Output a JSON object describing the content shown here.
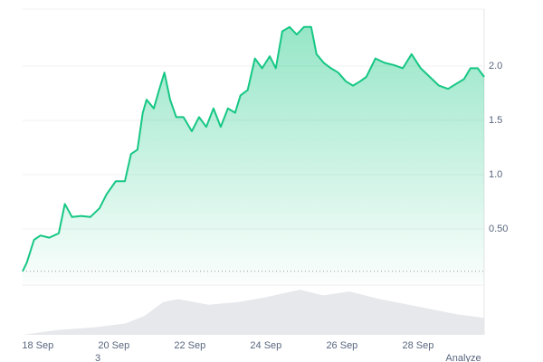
{
  "chart_data": {
    "type": "area",
    "x": [
      17.6,
      17.71,
      17.9,
      18.07,
      18.3,
      18.55,
      18.71,
      18.9,
      19.14,
      19.38,
      19.62,
      19.81,
      20.05,
      20.29,
      20.45,
      20.62,
      20.76,
      20.86,
      21.05,
      21.19,
      21.33,
      21.48,
      21.64,
      21.83,
      22.05,
      22.24,
      22.43,
      22.62,
      22.81,
      23.0,
      23.19,
      23.33,
      23.52,
      23.71,
      23.9,
      24.1,
      24.26,
      24.43,
      24.62,
      24.81,
      25.0,
      25.19,
      25.33,
      25.52,
      25.71,
      25.9,
      26.1,
      26.29,
      26.48,
      26.64,
      26.88,
      27.12,
      27.36,
      27.6,
      27.83,
      28.07,
      28.31,
      28.55,
      28.79,
      29.02,
      29.21,
      29.38,
      29.57,
      29.74
    ],
    "series": [
      {
        "color": "#16c784",
        "values": [
          0.11,
          0.19,
          0.4,
          0.44,
          0.42,
          0.46,
          0.73,
          0.61,
          0.62,
          0.61,
          0.69,
          0.82,
          0.94,
          0.94,
          1.19,
          1.23,
          1.57,
          1.69,
          1.61,
          1.78,
          1.94,
          1.69,
          1.53,
          1.53,
          1.4,
          1.53,
          1.44,
          1.61,
          1.44,
          1.61,
          1.57,
          1.73,
          1.78,
          2.07,
          1.98,
          2.09,
          1.98,
          2.32,
          2.36,
          2.29,
          2.36,
          2.36,
          2.11,
          2.03,
          1.98,
          1.94,
          1.86,
          1.82,
          1.86,
          1.9,
          2.07,
          2.03,
          2.01,
          1.98,
          2.11,
          1.98,
          1.9,
          1.82,
          1.79,
          1.84,
          1.88,
          1.98,
          1.98,
          1.9
        ]
      }
    ],
    "volume": {
      "color": "#e6e8ec",
      "x": [
        17.6,
        18.5,
        19.5,
        20.3,
        20.8,
        21.3,
        21.7,
        22.5,
        23.3,
        24.0,
        24.9,
        25.5,
        26.2,
        27.0,
        28.0,
        29.0,
        29.74
      ],
      "values": [
        0,
        5,
        8,
        12,
        20,
        35,
        38,
        32,
        35,
        40,
        48,
        42,
        46,
        38,
        30,
        22,
        18
      ],
      "ylim": [
        0,
        50
      ]
    },
    "xlim": [
      17.6,
      29.74
    ],
    "xticks": [
      {
        "value": 18,
        "label": "18 Sep"
      },
      {
        "value": 20,
        "label": "20 Sep"
      },
      {
        "value": 22,
        "label": "22 Sep"
      },
      {
        "value": 24,
        "label": "24 Sep"
      },
      {
        "value": 26,
        "label": "26 Sep"
      },
      {
        "value": 28,
        "label": "28 Sep"
      }
    ],
    "ylim": [
      0,
      2.5
    ],
    "yticks": [
      {
        "value": 0.5,
        "label": "0.50"
      },
      {
        "value": 1,
        "label": "1.0"
      },
      1.5,
      {
        "value": 2,
        "label": "2.0"
      }
    ],
    "grid": true,
    "annotations": [
      "3",
      "Analyze"
    ]
  }
}
